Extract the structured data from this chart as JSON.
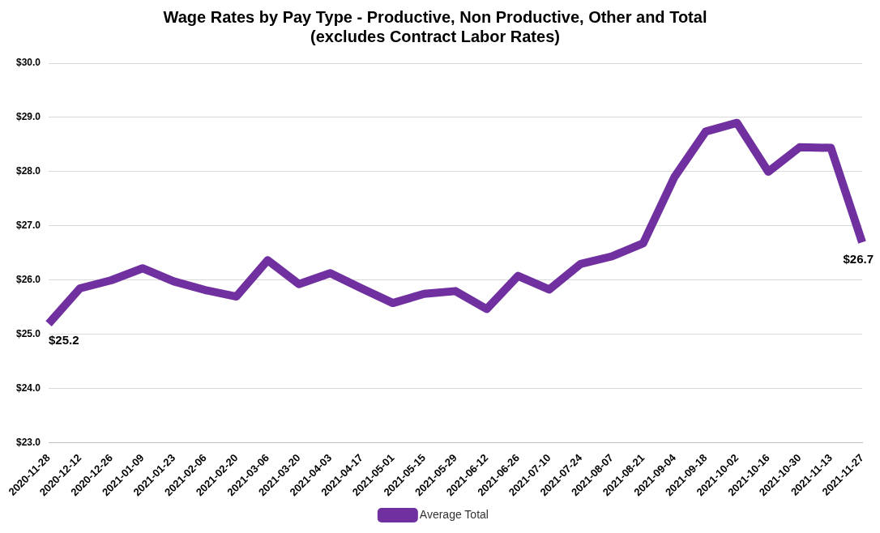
{
  "chart_data": {
    "type": "line",
    "title": "Wage Rates by Pay Type - Productive, Non Productive, Other and Total\n(excludes Contract Labor Rates)",
    "categories": [
      "2020-11-28",
      "2020-12-12",
      "2020-12-26",
      "2021-01-09",
      "2021-01-23",
      "2021-02-06",
      "2021-02-20",
      "2021-03-06",
      "2021-03-20",
      "2021-04-03",
      "2021-04-17",
      "2021-05-01",
      "2021-05-15",
      "2021-05-29",
      "2021-06-12",
      "2021-06-26",
      "2021-07-10",
      "2021-07-24",
      "2021-08-07",
      "2021-08-21",
      "2021-09-04",
      "2021-09-18",
      "2021-10-02",
      "2021-10-16",
      "2021-10-30",
      "2021-11-13",
      "2021-11-27"
    ],
    "series": [
      {
        "name": "Average Total",
        "color": "#7030a0",
        "values": [
          25.2,
          25.85,
          26.0,
          26.22,
          25.98,
          25.82,
          25.7,
          26.37,
          25.93,
          26.13,
          25.85,
          25.58,
          25.75,
          25.8,
          25.47,
          26.08,
          25.83,
          26.3,
          26.44,
          26.68,
          27.9,
          28.74,
          28.9,
          28.0,
          28.45,
          28.44,
          26.7
        ]
      }
    ],
    "ylim": [
      23,
      30
    ],
    "yticks": [
      {
        "value": 23,
        "label": "$23.0"
      },
      {
        "value": 24,
        "label": "$24.0"
      },
      {
        "value": 25,
        "label": "$25.0"
      },
      {
        "value": 26,
        "label": "$26.0"
      },
      {
        "value": 27,
        "label": "$27.0"
      },
      {
        "value": 28,
        "label": "$28.0"
      },
      {
        "value": 29,
        "label": "$29.0"
      },
      {
        "value": 30,
        "label": "$30.0"
      }
    ],
    "annotations": [
      {
        "text": "$25.2",
        "x": "2020-11-28",
        "y": 25.2
      },
      {
        "text": "$26.7",
        "x": "2021-11-27",
        "y": 26.7
      }
    ],
    "grid": "y",
    "legend": "bottom",
    "marker": "none",
    "line_style": "solid"
  }
}
